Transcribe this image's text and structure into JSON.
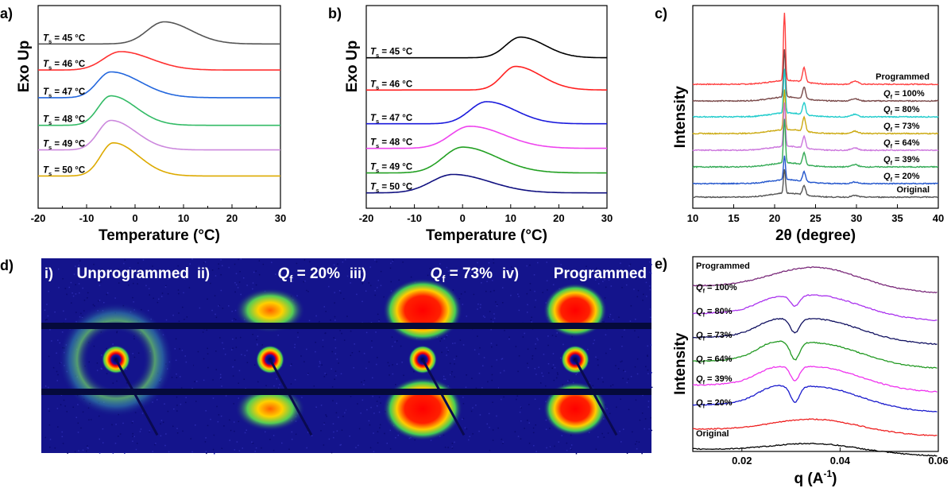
{
  "colors": {
    "blue_bg": "#14148c",
    "red": "#ff0000",
    "yellow": "#ffe000",
    "green": "#33cc44",
    "cyan": "#00c8e6",
    "dark_band": "#050a3c"
  },
  "chart_data": [
    {
      "panel": "a)",
      "type": "line",
      "xlabel": "Temperature (°C)",
      "ylabel": "Exo Up",
      "xlim": [
        -20,
        30
      ],
      "xticks": [
        "-20",
        "-10",
        "0",
        "10",
        "20",
        "30"
      ],
      "series": [
        {
          "name": "Ts = 45 °C",
          "sub": "s",
          "text": " = 45 °C",
          "color": "#555555",
          "baseline": 0.9,
          "peak_x": 6,
          "peak_h": 0.3,
          "width": 3.5,
          "decay": 1.6
        },
        {
          "name": "Ts = 46 °C",
          "sub": "s",
          "text": " = 46 °C",
          "color": "#ff3030",
          "baseline": 1.75,
          "peak_x": -3,
          "peak_h": 0.25,
          "width": 3.5,
          "decay": 1.8
        },
        {
          "name": "Ts = 47 °C",
          "sub": "s",
          "text": " = 47 °C",
          "color": "#2266dd",
          "baseline": 2.65,
          "peak_x": -5,
          "peak_h": 0.35,
          "width": 2.8,
          "decay": 2.2
        },
        {
          "name": "Ts = 48 °C",
          "sub": "s",
          "text": " = 48 °C",
          "color": "#33bb66",
          "baseline": 3.55,
          "peak_x": -5,
          "peak_h": 0.4,
          "width": 2.6,
          "decay": 2.0
        },
        {
          "name": "Ts = 49 °C",
          "sub": "s",
          "text": " = 49 °C",
          "color": "#cc88dd",
          "baseline": 4.35,
          "peak_x": -5,
          "peak_h": 0.4,
          "width": 2.6,
          "decay": 2.0
        },
        {
          "name": "Ts = 50 °C",
          "sub": "s",
          "text": " = 50 °C",
          "color": "#ddaa00",
          "baseline": 5.2,
          "peak_x": -4.5,
          "peak_h": 0.45,
          "width": 2.6,
          "decay": 2.0
        }
      ]
    },
    {
      "panel": "b)",
      "type": "line",
      "xlabel": "Temperature (°C)",
      "ylabel": "Exo Up",
      "xlim": [
        -20,
        30
      ],
      "xticks": [
        "-20",
        "-10",
        "0",
        "10",
        "20",
        "30"
      ],
      "series": [
        {
          "name": "Ts = 45 °C",
          "sub": "s",
          "text": " = 45 °C",
          "color": "#000000",
          "baseline": 1.35,
          "peak_x": 12,
          "peak_h": 0.28,
          "width": 3.0,
          "decay": 1.7
        },
        {
          "name": "Ts = 46 °C",
          "sub": "s",
          "text": " = 46 °C",
          "color": "#ff2020",
          "baseline": 2.4,
          "peak_x": 11,
          "peak_h": 0.32,
          "width": 2.8,
          "decay": 1.9
        },
        {
          "name": "Ts = 47 °C",
          "sub": "s",
          "text": " = 47 °C",
          "color": "#1a1adc",
          "baseline": 3.5,
          "peak_x": 5,
          "peak_h": 0.3,
          "width": 3.5,
          "decay": 1.7
        },
        {
          "name": "Ts = 48 °C",
          "sub": "s",
          "text": " = 48 °C",
          "color": "#ee44ee",
          "baseline": 4.3,
          "peak_x": 1.5,
          "peak_h": 0.3,
          "width": 4.0,
          "decay": 1.8
        },
        {
          "name": "Ts = 49 °C",
          "sub": "s",
          "text": " = 49 °C",
          "color": "#22a022",
          "baseline": 5.1,
          "peak_x": 0,
          "peak_h": 0.35,
          "width": 4.0,
          "decay": 1.8
        },
        {
          "name": "Ts = 50 °C",
          "sub": "s",
          "text": " = 50 °C",
          "color": "#101080",
          "baseline": 5.75,
          "peak_x": -2,
          "peak_h": 0.25,
          "width": 4.5,
          "decay": 1.7
        }
      ]
    },
    {
      "panel": "c)",
      "type": "line",
      "xlabel": "2θ (degree)",
      "ylabel": "Intensity",
      "xlim": [
        10,
        40
      ],
      "xticks": [
        "10",
        "15",
        "20",
        "25",
        "30",
        "35",
        "40"
      ],
      "peaks": [
        21.2,
        23.6,
        29.8
      ],
      "series": [
        {
          "name": "Programmed",
          "label": "Programmed",
          "color": "#ff4040",
          "peak1": 0.85,
          "peak2": 0.18,
          "peak3": 0.04
        },
        {
          "name": "Qf = 100%",
          "sub": "f",
          "text": " = 100%",
          "color": "#7a4a4a",
          "peak1": 0.6,
          "peak2": 0.15,
          "peak3": 0.03
        },
        {
          "name": "Qf = 80%",
          "sub": "f",
          "text": " = 80%",
          "color": "#22cccc",
          "peak1": 0.55,
          "peak2": 0.15,
          "peak3": 0.03
        },
        {
          "name": "Qf = 73%",
          "sub": "f",
          "text": " = 73%",
          "color": "#ccaa11",
          "peak1": 0.5,
          "peak2": 0.18,
          "peak3": 0.03
        },
        {
          "name": "Qf = 64%",
          "sub": "f",
          "text": " = 64%",
          "color": "#cc77dd",
          "peak1": 0.55,
          "peak2": 0.15,
          "peak3": 0.03
        },
        {
          "name": "Qf = 39%",
          "sub": "f",
          "text": " = 39%",
          "color": "#33aa55",
          "peak1": 0.55,
          "peak2": 0.15,
          "peak3": 0.03
        },
        {
          "name": "Qf = 20%",
          "sub": "f",
          "text": " = 20%",
          "color": "#2255cc",
          "peak1": 0.3,
          "peak2": 0.12,
          "peak3": 0.02
        },
        {
          "name": "Original",
          "label": "Original",
          "color": "#555555",
          "peak1": 0.3,
          "peak2": 0.12,
          "peak3": 0.02
        }
      ]
    },
    {
      "panel": "e)",
      "type": "line",
      "xlabel": "q (A-1)",
      "ylabel": "Intensity",
      "xlim": [
        0.01,
        0.06
      ],
      "xticks": [
        "0.02",
        "0.04",
        "0.06"
      ],
      "xtick_values": [
        0.02,
        0.04,
        0.06
      ],
      "series": [
        {
          "name": "Programmed",
          "label": "Programmed",
          "color": "#7a2a7a",
          "dip": 0.0,
          "bump": 1.0
        },
        {
          "name": "Qf = 100%",
          "sub": "f",
          "text": " = 100%",
          "color": "#aa33ee",
          "dip": 0.6,
          "bump": 1.0
        },
        {
          "name": "Qf = 80%",
          "sub": "f",
          "text": " = 80%",
          "color": "#101060",
          "dip": 0.8,
          "bump": 1.0
        },
        {
          "name": "Qf = 73%",
          "sub": "f",
          "text": " = 73%",
          "color": "#229922",
          "dip": 1.0,
          "bump": 1.0
        },
        {
          "name": "Qf = 64%",
          "sub": "f",
          "text": " = 64%",
          "color": "#ee33ee",
          "dip": 0.8,
          "bump": 1.0
        },
        {
          "name": "Qf = 39%",
          "sub": "f",
          "text": " = 39%",
          "color": "#1a1acc",
          "dip": 0.9,
          "bump": 1.0
        },
        {
          "name": "Qf = 20%",
          "sub": "f",
          "text": " = 20%",
          "color": "#ee2020",
          "dip": 0.0,
          "bump": 0.6
        },
        {
          "name": "Original",
          "label": "Original",
          "color": "#000000",
          "dip": 0.0,
          "bump": 0.4
        }
      ]
    }
  ],
  "saxs": {
    "panel": "d)",
    "images": [
      {
        "roman": "i)",
        "title": "Unprogrammed",
        "pattern": "ring"
      },
      {
        "roman": "ii)",
        "sub_prefix": "Q",
        "sub": "f",
        "title": " = 20%",
        "pattern": "weak-lobes"
      },
      {
        "roman": "iii)",
        "sub_prefix": "Q",
        "sub": "f",
        "title": " = 73%",
        "pattern": "strong-lobes"
      },
      {
        "roman": "iv)",
        "title": "Programmed",
        "pattern": "lobes"
      }
    ]
  },
  "italic_T": "T",
  "italic_Q": "Q"
}
